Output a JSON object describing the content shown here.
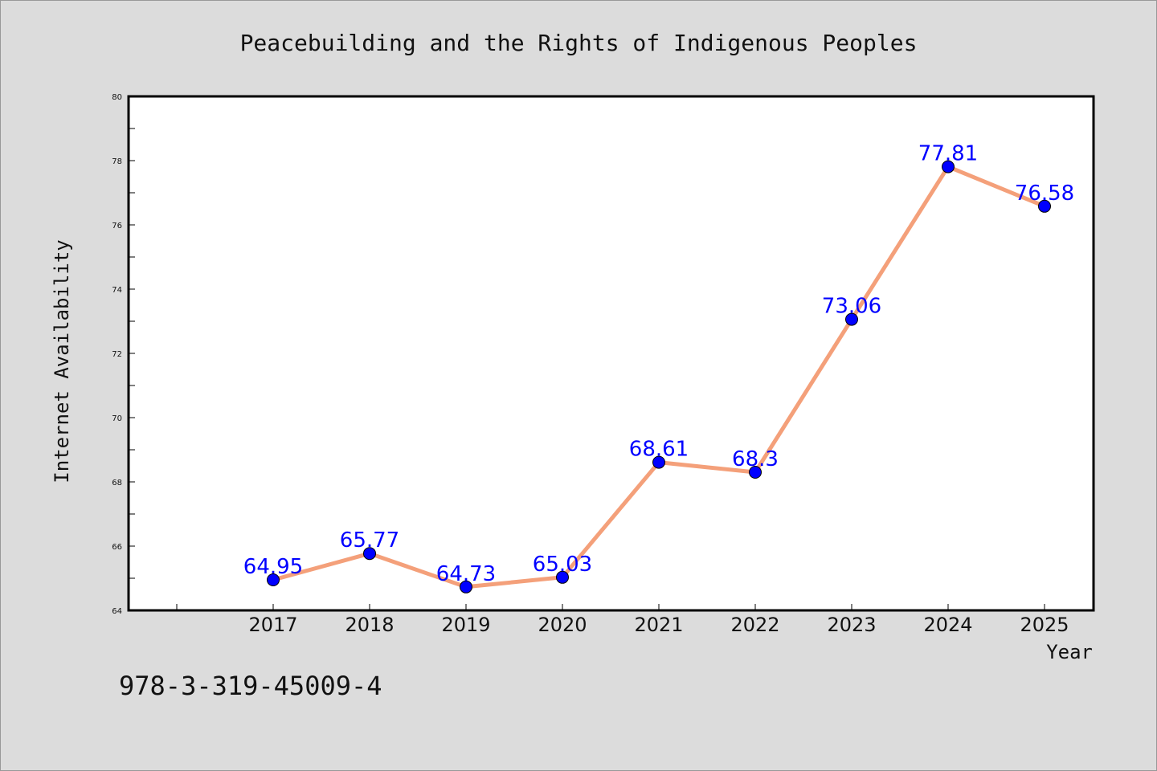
{
  "colors": {
    "background": "#dcdcdc",
    "plot_background": "#ffffff",
    "line": "#f4a07a",
    "marker": "#0000ff",
    "data_label": "#0000ff"
  },
  "footer_text": "978-3-319-45009-4",
  "chart_data": {
    "type": "line",
    "title": "Peacebuilding and the Rights of Indigenous Peoples",
    "xlabel": "Year",
    "ylabel": "Internet Availability",
    "categories": [
      "2017",
      "2018",
      "2019",
      "2020",
      "2021",
      "2022",
      "2023",
      "2024",
      "2025"
    ],
    "series": [
      {
        "values": [
          64.95,
          65.77,
          64.73,
          65.03,
          68.61,
          68.3,
          73.06,
          77.81,
          76.58
        ],
        "labels": [
          "64.95",
          "65.77",
          "64.73",
          "65.03",
          "68.61",
          "68.3",
          "73.06",
          "77.81",
          "76.58"
        ]
      }
    ],
    "ylim": [
      64,
      80
    ],
    "yticks": [
      "64",
      "66",
      "68",
      "70",
      "72",
      "74",
      "76",
      "78",
      "80"
    ],
    "grid": false,
    "legend": "none"
  }
}
